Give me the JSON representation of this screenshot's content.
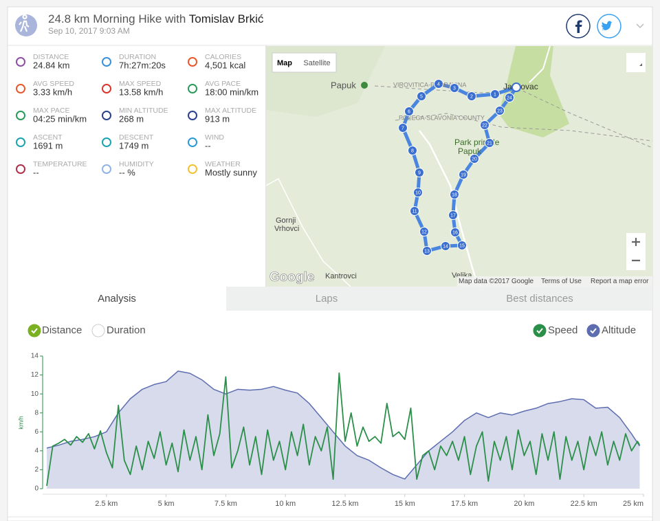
{
  "header": {
    "title": "24.8 km Morning Hike with",
    "athlete": "Tomislav Brkić",
    "date": "Sep 10, 2017 9:03 AM"
  },
  "stats": [
    {
      "label": "DISTANCE",
      "value": "24.84 km"
    },
    {
      "label": "DURATION",
      "value": "7h:27m:20s"
    },
    {
      "label": "CALORIES",
      "value": "4,501 kcal"
    },
    {
      "label": "AVG SPEED",
      "value": "3.33 km/h"
    },
    {
      "label": "MAX SPEED",
      "value": "13.58 km/h"
    },
    {
      "label": "AVG PACE",
      "value": "18:00 min/km"
    },
    {
      "label": "MAX PACE",
      "value": "04:25 min/km"
    },
    {
      "label": "MIN ALTITUDE",
      "value": "268 m"
    },
    {
      "label": "MAX ALTITUDE",
      "value": "913 m"
    },
    {
      "label": "ASCENT",
      "value": "1691 m"
    },
    {
      "label": "DESCENT",
      "value": "1749 m"
    },
    {
      "label": "WIND",
      "value": "--"
    },
    {
      "label": "TEMPERATURE",
      "value": "--"
    },
    {
      "label": "HUMIDITY",
      "value": "-- %"
    },
    {
      "label": "WEATHER",
      "value": "Mostly sunny"
    }
  ],
  "map": {
    "buttons": [
      "Map",
      "Satellite"
    ],
    "labels": [
      "Papuk",
      "VIROVITICA-PODRAVINA",
      "POŽEGA-SLAVONIA COUNTY",
      "Jankovac",
      "Park prirode",
      "Papuk",
      "Gornji",
      "Vrhovci",
      "Kantrovci",
      "Velika"
    ],
    "markers": [
      1,
      2,
      3,
      4,
      5,
      6,
      7,
      8,
      9,
      10,
      11,
      12,
      13,
      14,
      15,
      16,
      17,
      18,
      19,
      20,
      21,
      22,
      23,
      24
    ],
    "logo": "Google",
    "footer": [
      "Map data ©2017 Google",
      "Terms of Use",
      "Report a map error"
    ]
  },
  "tabs": [
    "Analysis",
    "Laps",
    "Best distances"
  ],
  "toggles": [
    "Distance",
    "Duration"
  ],
  "chart_data": {
    "type": "line",
    "ylabel": "km/h",
    "xlim": [
      0,
      25
    ],
    "xticks": [
      {
        "value": 2.5,
        "label": "2.5 km"
      },
      {
        "value": 5,
        "label": "5 km"
      },
      {
        "value": 7.5,
        "label": "7.5 km"
      },
      {
        "value": 10,
        "label": "10 km"
      },
      {
        "value": 12.5,
        "label": "12.5 km"
      },
      {
        "value": 15,
        "label": "15 km"
      },
      {
        "value": 17.5,
        "label": "17.5 km"
      },
      {
        "value": 20,
        "label": "20 km"
      },
      {
        "value": 22.5,
        "label": "22.5 km"
      },
      {
        "value": 25,
        "label": "25 km"
      }
    ],
    "ylim": [
      0,
      14
    ],
    "yticks": [
      0,
      2,
      4,
      6,
      8,
      10,
      12,
      14
    ],
    "y2lim": [
      210,
      1003
    ],
    "series": [
      {
        "name": "Speed",
        "color": "#2a8f48",
        "x": [
          0,
          0.25,
          0.5,
          0.75,
          1,
          1.25,
          1.5,
          1.75,
          2,
          2.25,
          2.5,
          2.75,
          3,
          3.25,
          3.5,
          3.75,
          4,
          4.25,
          4.5,
          4.75,
          5,
          5.25,
          5.5,
          5.75,
          6,
          6.25,
          6.5,
          6.75,
          7,
          7.25,
          7.5,
          7.75,
          8,
          8.25,
          8.5,
          8.75,
          9,
          9.25,
          9.5,
          9.75,
          10,
          10.25,
          10.5,
          10.75,
          11,
          11.25,
          11.5,
          11.75,
          12,
          12.25,
          12.5,
          12.75,
          13,
          13.25,
          13.5,
          13.75,
          14,
          14.25,
          14.5,
          14.75,
          15,
          15.25,
          15.5,
          15.75,
          16,
          16.25,
          16.5,
          16.75,
          17,
          17.25,
          17.5,
          17.75,
          18,
          18.25,
          18.5,
          18.75,
          19,
          19.25,
          19.5,
          19.75,
          20,
          20.25,
          20.5,
          20.75,
          21,
          21.25,
          21.5,
          21.75,
          22,
          22.25,
          22.5,
          22.75,
          23,
          23.25,
          23.5,
          23.75,
          24,
          24.25,
          24.5,
          24.75,
          24.84
        ],
        "values": [
          0.3,
          4.5,
          4.8,
          5.2,
          4.6,
          5.5,
          4.9,
          5.8,
          4.2,
          6.1,
          3.8,
          2.2,
          8.8,
          3.0,
          1.5,
          4.5,
          2.0,
          5.0,
          3.2,
          6.0,
          2.5,
          4.8,
          1.8,
          6.2,
          3.0,
          5.5,
          2.0,
          7.8,
          3.5,
          5.8,
          11.8,
          2.2,
          4.0,
          6.5,
          2.5,
          5.5,
          1.5,
          6.2,
          3.0,
          5.0,
          2.0,
          6.0,
          3.5,
          6.8,
          2.5,
          5.5,
          4.0,
          6.5,
          1.0,
          12.2,
          5.0,
          8.0,
          4.5,
          6.5,
          5.0,
          5.5,
          4.8,
          9.0,
          5.5,
          6.0,
          5.2,
          8.5,
          1.0,
          3.5,
          4.0,
          2.0,
          4.5,
          3.5,
          5.0,
          3.0,
          5.5,
          1.5,
          4.5,
          6.0,
          0.8,
          5.0,
          3.0,
          5.5,
          2.0,
          6.2,
          3.5,
          5.0,
          1.5,
          5.8,
          3.0,
          6.0,
          1.0,
          5.5,
          3.0,
          5.0,
          2.0,
          5.5,
          3.5,
          6.0,
          2.5,
          5.0,
          3.0,
          5.8,
          4.0,
          5.0,
          4.6
        ]
      },
      {
        "name": "Altitude",
        "color": "#5d6db0",
        "axis": "y2",
        "x": [
          0,
          0.5,
          1,
          1.5,
          2,
          2.5,
          3,
          3.5,
          4,
          4.5,
          5,
          5.5,
          6,
          6.5,
          7,
          7.5,
          8,
          8.5,
          9,
          9.5,
          10,
          10.5,
          11,
          11.5,
          12,
          12.5,
          13,
          13.5,
          14,
          14.5,
          15,
          15.5,
          16,
          16.5,
          17,
          17.5,
          18,
          18.5,
          19,
          19.5,
          20,
          20.5,
          21,
          21.5,
          22,
          22.5,
          23,
          23.5,
          24,
          24.5,
          24.84
        ],
        "values": [
          453,
          470,
          493,
          505,
          521,
          550,
          663,
          748,
          804,
          833,
          850,
          913,
          900,
          861,
          804,
          776,
          804,
          799,
          804,
          821,
          799,
          782,
          719,
          635,
          550,
          465,
          408,
          380,
          335,
          295,
          268,
          352,
          436,
          493,
          550,
          618,
          663,
          635,
          663,
          651,
          674,
          691,
          719,
          731,
          748,
          742,
          691,
          697,
          635,
          538,
          465
        ]
      }
    ]
  }
}
